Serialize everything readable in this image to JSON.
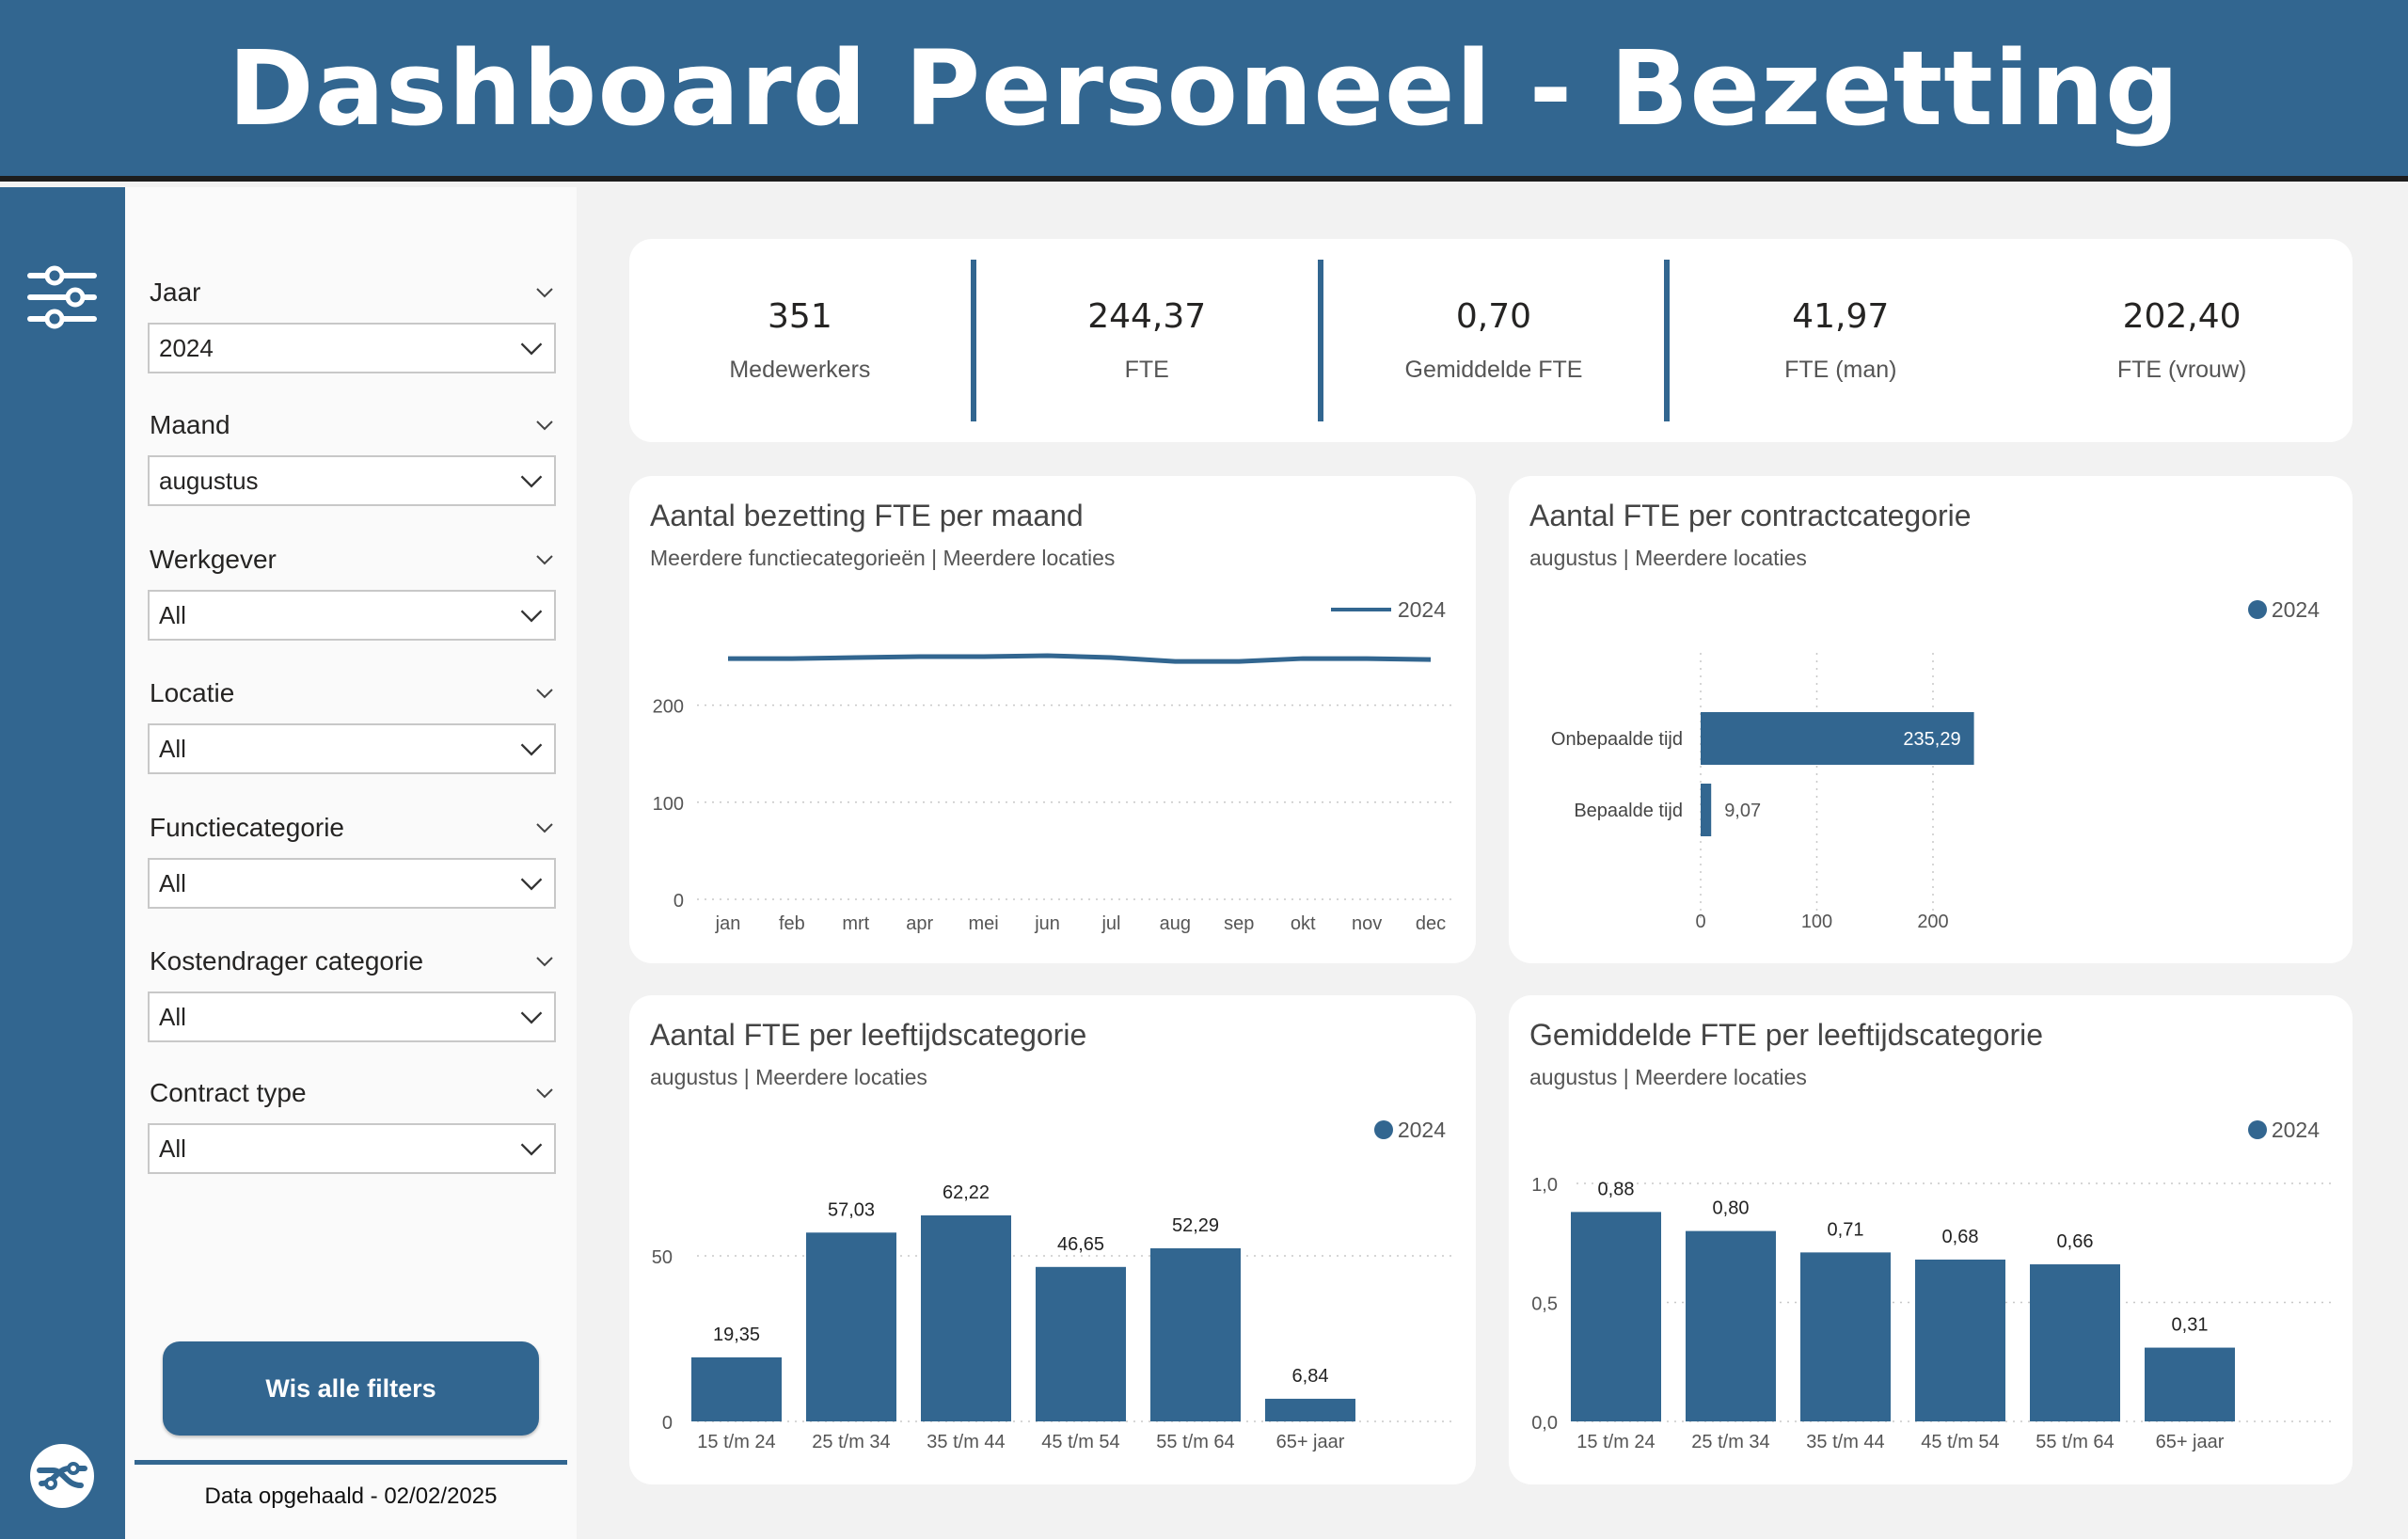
{
  "header": {
    "title": "Dashboard Personeel - Bezetting"
  },
  "filters": [
    {
      "label": "Jaar",
      "value": "2024"
    },
    {
      "label": "Maand",
      "value": "augustus"
    },
    {
      "label": "Werkgever",
      "value": "All"
    },
    {
      "label": "Locatie",
      "value": "All"
    },
    {
      "label": "Functiecategorie",
      "value": "All"
    },
    {
      "label": "Kostendrager categorie",
      "value": "All"
    },
    {
      "label": "Contract type",
      "value": "All"
    }
  ],
  "clear_button": "Wis alle filters",
  "data_date": "Data opgehaald - 02/02/2025",
  "kpis": [
    {
      "value": "351",
      "label": "Medewerkers"
    },
    {
      "value": "244,37",
      "label": "FTE"
    },
    {
      "value": "0,70",
      "label": "Gemiddelde FTE"
    },
    {
      "value": "41,97",
      "label": "FTE (man)"
    },
    {
      "value": "202,40",
      "label": "FTE (vrouw)"
    }
  ],
  "colors": {
    "brand": "#326690",
    "header_border": "#1d1d1d",
    "grid": "#c8c8c8"
  },
  "icons": {
    "rail_top": "sliders-icon",
    "rail_bottom": "logo-icon"
  },
  "chart_data": [
    {
      "id": "line",
      "type": "line",
      "title": "Aantal bezetting FTE per maand",
      "subtitle": "Meerdere functiecategorieën | Meerdere locaties",
      "categories": [
        "jan",
        "feb",
        "mrt",
        "apr",
        "mei",
        "jun",
        "jul",
        "aug",
        "sep",
        "okt",
        "nov",
        "dec"
      ],
      "series": [
        {
          "name": "2024",
          "values": [
            248,
            248,
            249,
            250,
            250,
            251,
            249,
            245,
            245,
            248,
            248,
            247
          ]
        }
      ],
      "ylim": [
        0,
        250
      ],
      "yticks": [
        "0",
        "100",
        "200"
      ],
      "ytick_values": [
        0,
        100,
        200
      ],
      "grid": true,
      "legend": "top-right"
    },
    {
      "id": "contract",
      "type": "bar",
      "orientation": "horizontal",
      "title": "Aantal FTE per contractcategorie",
      "subtitle": "augustus | Meerdere locaties",
      "categories": [
        "Onbepaalde tijd",
        "Bepaalde tijd"
      ],
      "series": [
        {
          "name": "2024",
          "values": [
            235.29,
            9.07
          ]
        }
      ],
      "value_labels": [
        "235,29",
        "9,07"
      ],
      "xlim": [
        0,
        250
      ],
      "xticks": [
        "0",
        "100",
        "200"
      ],
      "xtick_values": [
        0,
        100,
        200
      ],
      "grid": true,
      "legend": "top-right"
    },
    {
      "id": "age_fte",
      "type": "bar",
      "title": "Aantal FTE per leeftijdscategorie",
      "subtitle": "augustus | Meerdere locaties",
      "categories": [
        "15 t/m 24",
        "25 t/m 34",
        "35 t/m 44",
        "45 t/m 54",
        "55 t/m 64",
        "65+ jaar"
      ],
      "series": [
        {
          "name": "2024",
          "values": [
            19.35,
            57.03,
            62.22,
            46.65,
            52.29,
            6.84
          ]
        }
      ],
      "value_labels": [
        "19,35",
        "57,03",
        "62,22",
        "46,65",
        "52,29",
        "6,84"
      ],
      "ylim": [
        0,
        62.22
      ],
      "yticks": [
        "0",
        "50"
      ],
      "ytick_values": [
        0,
        50
      ],
      "grid": true,
      "legend": "top-right"
    },
    {
      "id": "age_avg",
      "type": "bar",
      "title": "Gemiddelde FTE per leeftijdscategorie",
      "subtitle": "augustus | Meerdere locaties",
      "categories": [
        "15 t/m 24",
        "25 t/m 34",
        "35 t/m 44",
        "45 t/m 54",
        "55 t/m 64",
        "65+ jaar"
      ],
      "series": [
        {
          "name": "2024",
          "values": [
            0.88,
            0.8,
            0.71,
            0.68,
            0.66,
            0.31
          ]
        }
      ],
      "value_labels": [
        "0,88",
        "0,80",
        "0,71",
        "0,68",
        "0,66",
        "0,31"
      ],
      "ylim": [
        0,
        1.0
      ],
      "yticks": [
        "0,0",
        "0,5",
        "1,0"
      ],
      "ytick_values": [
        0,
        0.5,
        1.0
      ],
      "grid": true,
      "legend": "top-right"
    }
  ]
}
